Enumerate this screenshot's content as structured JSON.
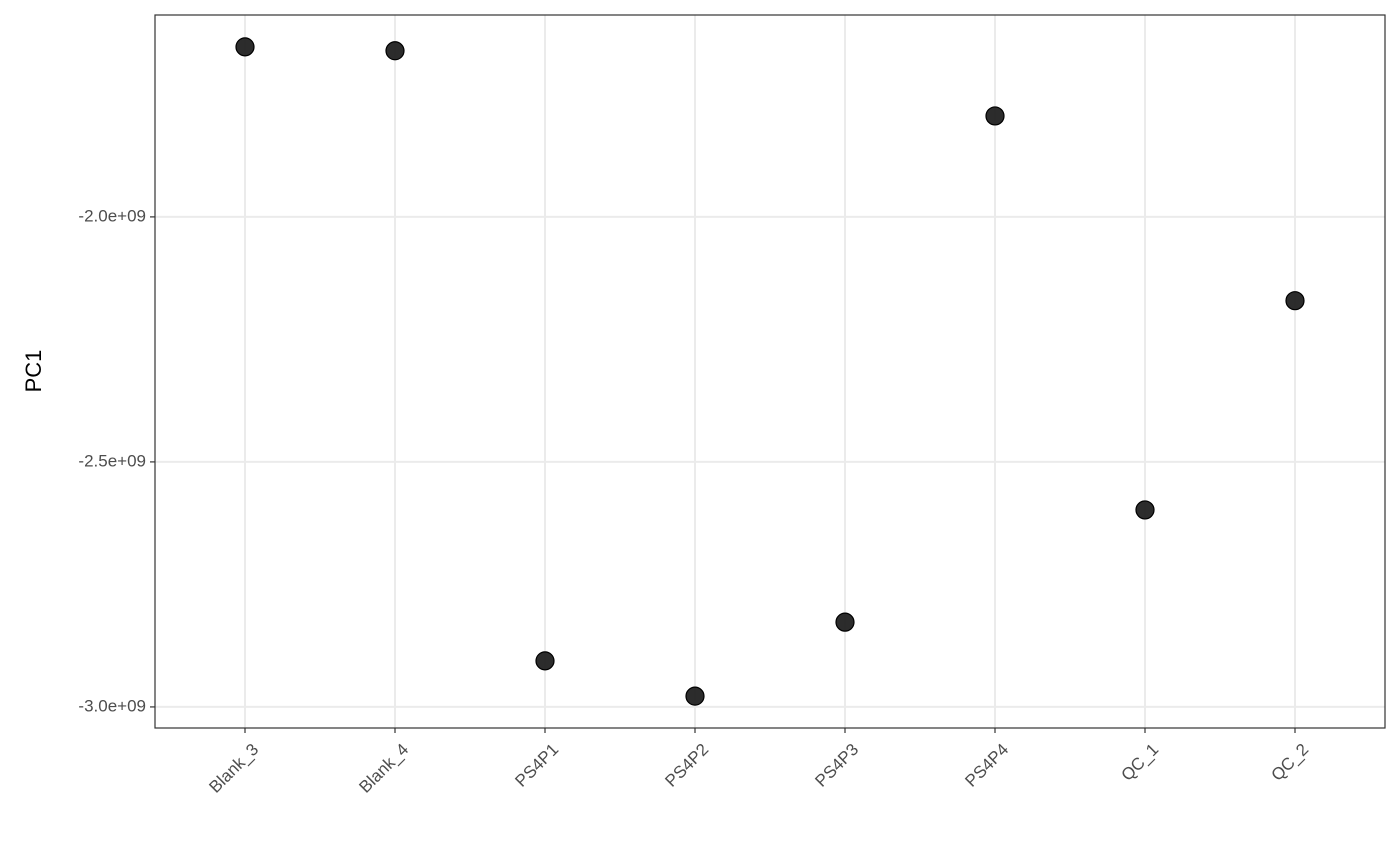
{
  "chart_data": {
    "type": "scatter",
    "y_label": "PC1",
    "categories": [
      "Blank_3",
      "Blank_4",
      "PS4P1",
      "PS4P2",
      "PS4P3",
      "PS4P4",
      "QC_1",
      "QC_2"
    ],
    "values": [
      -1653000000,
      -1661000000,
      -2906000000,
      -2978000000,
      -2827000000,
      -1794000000,
      -2598000000,
      -2171000000
    ],
    "color": "#1a1a1a",
    "ylim": [
      -3043000000,
      -1588000000
    ],
    "yticks": [
      {
        "value": -3000000000,
        "label": "-3.0e+09"
      },
      {
        "value": -2500000000,
        "label": "-2.5e+09"
      },
      {
        "value": -2000000000,
        "label": "-2.0e+09"
      }
    ],
    "grid": true
  }
}
